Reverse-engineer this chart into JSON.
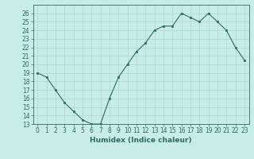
{
  "xlabel": "Humidex (Indice chaleur)",
  "ylabel": "",
  "x": [
    0,
    1,
    2,
    3,
    4,
    5,
    6,
    7,
    8,
    9,
    10,
    11,
    12,
    13,
    14,
    15,
    16,
    17,
    18,
    19,
    20,
    21,
    22,
    23
  ],
  "y": [
    19,
    18.5,
    17,
    15.5,
    14.5,
    13.5,
    13,
    13,
    16,
    18.5,
    20,
    21.5,
    22.5,
    24,
    24.5,
    24.5,
    26,
    25.5,
    25,
    26,
    25,
    24,
    22,
    20.5
  ],
  "ylim": [
    13,
    27
  ],
  "xlim": [
    -0.5,
    23.5
  ],
  "yticks": [
    13,
    14,
    15,
    16,
    17,
    18,
    19,
    20,
    21,
    22,
    23,
    24,
    25,
    26
  ],
  "xticks": [
    0,
    1,
    2,
    3,
    4,
    5,
    6,
    7,
    8,
    9,
    10,
    11,
    12,
    13,
    14,
    15,
    16,
    17,
    18,
    19,
    20,
    21,
    22,
    23
  ],
  "line_color": "#2e6b5e",
  "marker_color": "#2e6b5e",
  "bg_color": "#c8ece8",
  "grid_color": "#aad8d0",
  "label_fontsize": 6.5,
  "tick_fontsize": 5.5
}
